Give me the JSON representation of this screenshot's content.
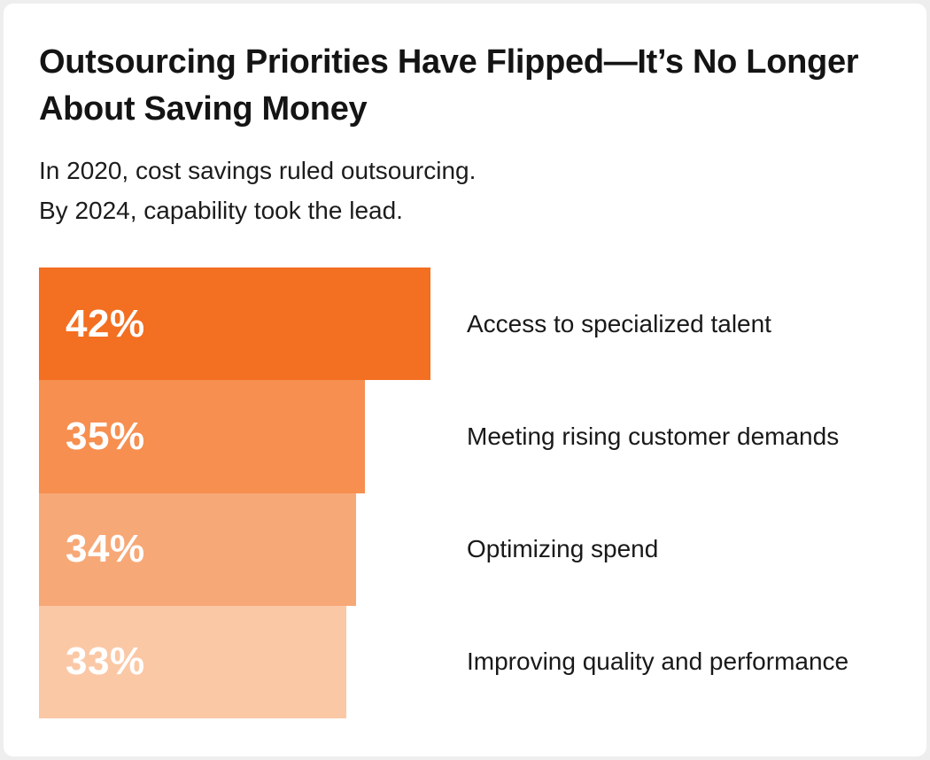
{
  "header": {
    "title_line1": "Outsourcing Priorities Have Flipped—It’s No Longer",
    "title_line2": "About Saving Money",
    "subtitle_line1": "In 2020, cost savings ruled outsourcing.",
    "subtitle_line2": "By 2024, capability took the lead."
  },
  "chart_data": {
    "type": "bar",
    "orientation": "horizontal",
    "title": "Outsourcing Priorities Have Flipped—It’s No Longer About Saving Money",
    "subtitle": "In 2020, cost savings ruled outsourcing. By 2024, capability took the lead.",
    "categories": [
      "Access to specialized talent",
      "Meeting rising customer demands",
      "Optimizing spend",
      "Improving quality and performance"
    ],
    "values": [
      42,
      35,
      34,
      33
    ],
    "value_labels": [
      "42%",
      "35%",
      "34%",
      "33%"
    ],
    "bar_colors": [
      "#F36F21",
      "#F68F50",
      "#F7A877",
      "#FBC8A6"
    ],
    "value_label_color": "#FFFFFF",
    "category_label_color": "#191919",
    "xlim": [
      0,
      42
    ],
    "grid": false,
    "legend": false
  }
}
